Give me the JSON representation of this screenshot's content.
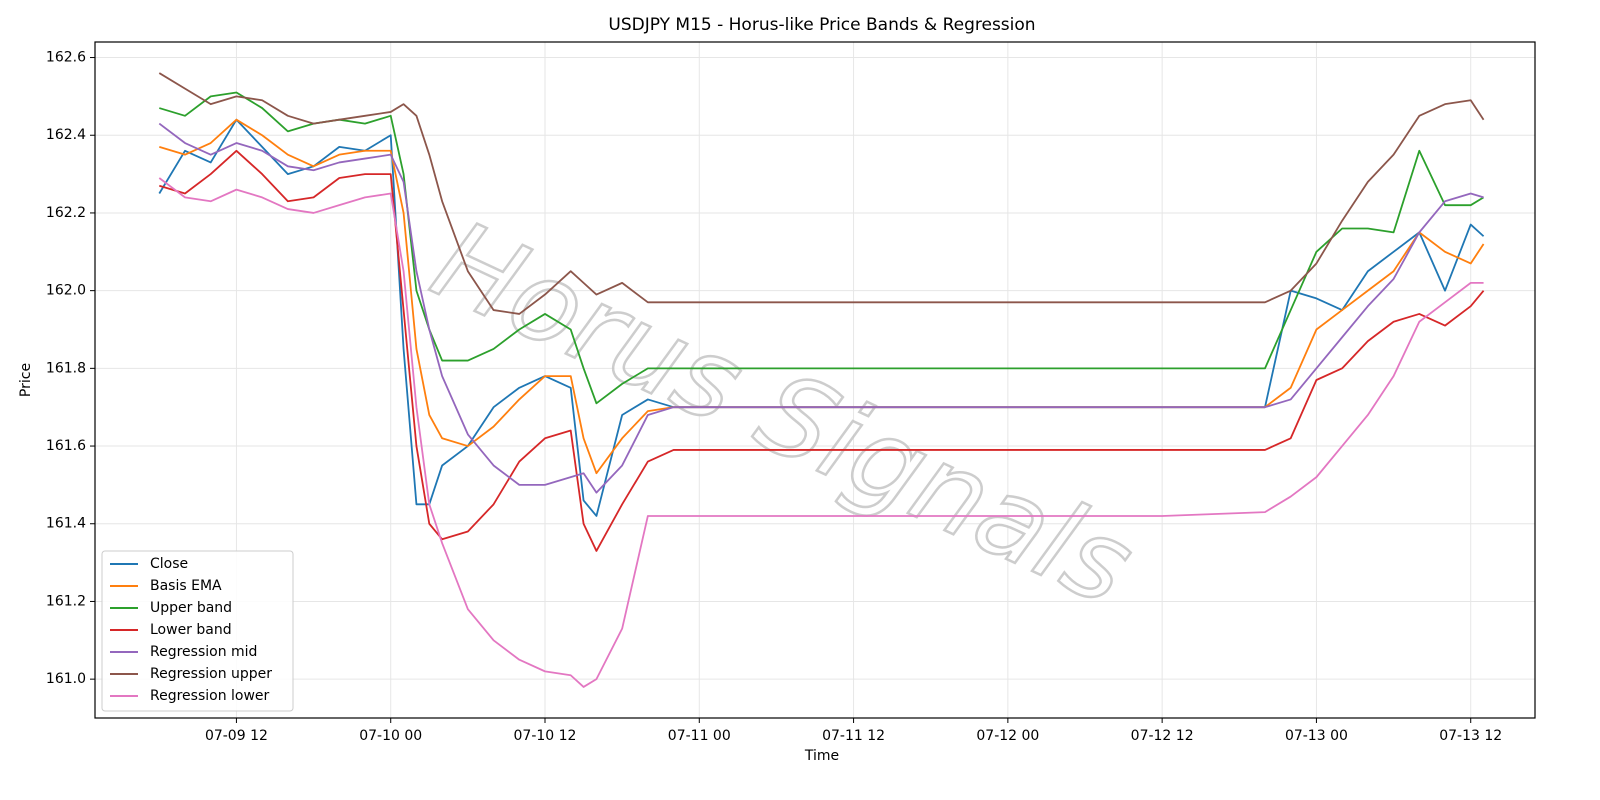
{
  "chart_data": {
    "type": "line",
    "title": "USDJPY M15 - Horus-like Price Bands & Regression",
    "xlabel": "Time",
    "ylabel": "Price",
    "watermark": "Horus Signals",
    "x": [
      "07-09 06",
      "07-09 08",
      "07-09 10",
      "07-09 12",
      "07-09 14",
      "07-09 16",
      "07-09 18",
      "07-09 20",
      "07-09 22",
      "07-10 00",
      "07-10 01",
      "07-10 02",
      "07-10 03",
      "07-10 04",
      "07-10 06",
      "07-10 08",
      "07-10 10",
      "07-10 12",
      "07-10 14",
      "07-10 15",
      "07-10 16",
      "07-10 18",
      "07-10 20",
      "07-10 22",
      "07-11 00",
      "07-11 12",
      "07-12 00",
      "07-12 12",
      "07-12 20",
      "07-12 22",
      "07-13 00",
      "07-13 02",
      "07-13 04",
      "07-13 06",
      "07-13 08",
      "07-13 10",
      "07-13 12",
      "07-13 13"
    ],
    "series": [
      {
        "name": "Close",
        "color": "#1f77b4",
        "values": [
          162.25,
          162.36,
          162.33,
          162.44,
          162.37,
          162.3,
          162.32,
          162.37,
          162.36,
          162.4,
          161.85,
          161.45,
          161.45,
          161.55,
          161.6,
          161.7,
          161.75,
          161.78,
          161.75,
          161.46,
          161.42,
          161.68,
          161.72,
          161.7,
          161.7,
          161.7,
          161.7,
          161.7,
          161.7,
          162.0,
          161.98,
          161.95,
          162.05,
          162.1,
          162.15,
          162.0,
          162.17,
          162.14
        ]
      },
      {
        "name": "Basis EMA",
        "color": "#ff7f0e",
        "values": [
          162.37,
          162.35,
          162.38,
          162.44,
          162.4,
          162.35,
          162.32,
          162.35,
          162.36,
          162.36,
          162.2,
          161.85,
          161.68,
          161.62,
          161.6,
          161.65,
          161.72,
          161.78,
          161.78,
          161.62,
          161.53,
          161.62,
          161.69,
          161.7,
          161.7,
          161.7,
          161.7,
          161.7,
          161.7,
          161.75,
          161.9,
          161.95,
          162.0,
          162.05,
          162.15,
          162.1,
          162.07,
          162.12
        ]
      },
      {
        "name": "Upper band",
        "color": "#2ca02c",
        "values": [
          162.47,
          162.45,
          162.5,
          162.51,
          162.47,
          162.41,
          162.43,
          162.44,
          162.43,
          162.45,
          162.3,
          162.0,
          161.9,
          161.82,
          161.82,
          161.85,
          161.9,
          161.94,
          161.9,
          161.8,
          161.71,
          161.76,
          161.8,
          161.8,
          161.8,
          161.8,
          161.8,
          161.8,
          161.8,
          161.95,
          162.1,
          162.16,
          162.16,
          162.15,
          162.36,
          162.22,
          162.22,
          162.24
        ]
      },
      {
        "name": "Lower band",
        "color": "#d62728",
        "values": [
          162.27,
          162.25,
          162.3,
          162.36,
          162.3,
          162.23,
          162.24,
          162.29,
          162.3,
          162.3,
          161.95,
          161.6,
          161.4,
          161.36,
          161.38,
          161.45,
          161.56,
          161.62,
          161.64,
          161.4,
          161.33,
          161.45,
          161.56,
          161.59,
          161.59,
          161.59,
          161.59,
          161.59,
          161.59,
          161.62,
          161.77,
          161.8,
          161.87,
          161.92,
          161.94,
          161.91,
          161.96,
          162.0
        ]
      },
      {
        "name": "Regression mid",
        "color": "#9467bd",
        "values": [
          162.43,
          162.38,
          162.35,
          162.38,
          162.36,
          162.32,
          162.31,
          162.33,
          162.34,
          162.35,
          162.28,
          162.05,
          161.9,
          161.78,
          161.63,
          161.55,
          161.5,
          161.5,
          161.52,
          161.53,
          161.48,
          161.55,
          161.68,
          161.7,
          161.7,
          161.7,
          161.7,
          161.7,
          161.7,
          161.72,
          161.8,
          161.88,
          161.96,
          162.03,
          162.15,
          162.23,
          162.25,
          162.24
        ]
      },
      {
        "name": "Regression upper",
        "color": "#8c564b",
        "values": [
          162.56,
          162.52,
          162.48,
          162.5,
          162.49,
          162.45,
          162.43,
          162.44,
          162.45,
          162.46,
          162.48,
          162.45,
          162.35,
          162.23,
          162.05,
          161.95,
          161.94,
          161.99,
          162.05,
          162.02,
          161.99,
          162.02,
          161.97,
          161.97,
          161.97,
          161.97,
          161.97,
          161.97,
          161.97,
          162.0,
          162.07,
          162.18,
          162.28,
          162.35,
          162.45,
          162.48,
          162.49,
          162.44
        ]
      },
      {
        "name": "Regression lower",
        "color": "#e377c2",
        "values": [
          162.29,
          162.24,
          162.23,
          162.26,
          162.24,
          162.21,
          162.2,
          162.22,
          162.24,
          162.25,
          162.05,
          161.7,
          161.45,
          161.35,
          161.18,
          161.1,
          161.05,
          161.02,
          161.01,
          160.98,
          161.0,
          161.13,
          161.42,
          161.42,
          161.42,
          161.42,
          161.42,
          161.42,
          161.43,
          161.47,
          161.52,
          161.6,
          161.68,
          161.78,
          161.92,
          161.97,
          162.02,
          162.02
        ]
      }
    ],
    "xlim": [
      "07-09 01",
      "07-13 17"
    ],
    "xticks": [
      "07-09 12",
      "07-10 00",
      "07-10 12",
      "07-11 00",
      "07-11 12",
      "07-12 00",
      "07-12 12",
      "07-13 00",
      "07-13 12"
    ],
    "ylim": [
      160.9,
      162.64
    ],
    "yticks": [
      {
        "value": 161.0,
        "label": "161.0"
      },
      161.2,
      161.4,
      161.6,
      161.8,
      {
        "value": 162.0,
        "label": "162.0"
      },
      162.2,
      162.4,
      162.6
    ],
    "grid": true,
    "legend": "lower left"
  }
}
